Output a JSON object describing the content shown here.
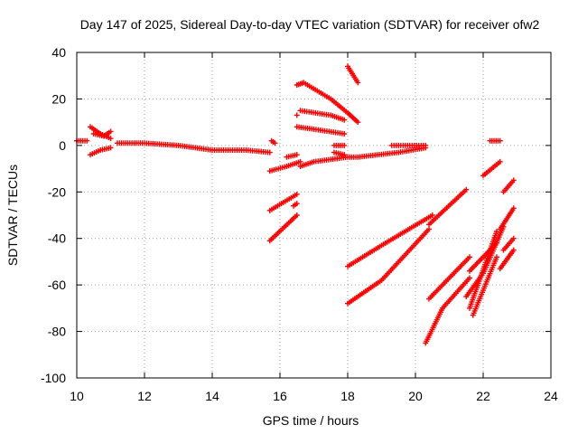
{
  "chart_data": {
    "type": "scatter",
    "title": "Day 147 of 2025, Sidereal Day-to-day VTEC variation (SDTVAR) for receiver ofw2",
    "xlabel": "GPS time / hours",
    "ylabel": "SDTVAR / TECUs",
    "xlim": [
      10,
      24
    ],
    "ylim": [
      -100,
      40
    ],
    "xticks": [
      "10",
      "12",
      "14",
      "16",
      "18",
      "20",
      "22",
      "24"
    ],
    "yticks": [
      "-100",
      "-80",
      "-60",
      "-40",
      "-20",
      "0",
      "20",
      "40"
    ],
    "grid": true,
    "legend": "none",
    "marker": "plus",
    "color": "#ff0000",
    "series": [
      {
        "x": [
          10.0,
          10.3
        ],
        "y": [
          2,
          2
        ]
      },
      {
        "x": [
          10.4,
          10.7,
          11.0
        ],
        "y": [
          8,
          5,
          3
        ]
      },
      {
        "x": [
          10.5,
          10.8,
          11.0
        ],
        "y": [
          5,
          4,
          6
        ]
      },
      {
        "x": [
          10.4,
          10.7,
          11.0
        ],
        "y": [
          -4,
          -2,
          -1
        ]
      },
      {
        "x": [
          11.2,
          12.0,
          13.0,
          14.0,
          15.0,
          15.7
        ],
        "y": [
          1,
          1,
          0,
          -2,
          -2,
          -3
        ]
      },
      {
        "x": [
          15.75,
          15.85
        ],
        "y": [
          2,
          1
        ]
      },
      {
        "x": [
          15.7,
          16.2,
          16.6
        ],
        "y": [
          -11,
          -9,
          -7
        ]
      },
      {
        "x": [
          16.2,
          16.5
        ],
        "y": [
          -5,
          -4
        ]
      },
      {
        "x": [
          15.7,
          16.5
        ],
        "y": [
          -28,
          -21
        ]
      },
      {
        "x": [
          16.4,
          16.5
        ],
        "y": [
          -26,
          -25
        ]
      },
      {
        "x": [
          15.7,
          16.5
        ],
        "y": [
          -41,
          -30
        ]
      },
      {
        "x": [
          16.6,
          17.0,
          18.0,
          18.3,
          19.5,
          20.3
        ],
        "y": [
          -9,
          -7,
          -5,
          -5,
          -3,
          -1
        ]
      },
      {
        "x": [
          16.5,
          16.7,
          17.5,
          18.0,
          18.3
        ],
        "y": [
          26,
          27,
          20,
          14,
          10
        ]
      },
      {
        "x": [
          16.5
        ],
        "y": [
          13
        ]
      },
      {
        "x": [
          16.6,
          17.5,
          17.9
        ],
        "y": [
          15,
          13,
          11
        ]
      },
      {
        "x": [
          16.5,
          17.0,
          17.9
        ],
        "y": [
          8,
          7,
          5
        ]
      },
      {
        "x": [
          17.6,
          17.9
        ],
        "y": [
          0,
          0
        ]
      },
      {
        "x": [
          17.6,
          17.9
        ],
        "y": [
          -3,
          -4
        ]
      },
      {
        "x": [
          18.0,
          18.3
        ],
        "y": [
          34,
          27
        ]
      },
      {
        "x": [
          19.3,
          20.3
        ],
        "y": [
          0,
          0
        ]
      },
      {
        "x": [
          18.0,
          19.0,
          20.5
        ],
        "y": [
          -52,
          -43,
          -30
        ]
      },
      {
        "x": [
          18.0,
          19.0,
          20.4
        ],
        "y": [
          -68,
          -58,
          -36
        ]
      },
      {
        "x": [
          20.4,
          21.5
        ],
        "y": [
          -34,
          -19
        ]
      },
      {
        "x": [
          20.3,
          20.8,
          21.6
        ],
        "y": [
          -85,
          -70,
          -57
        ]
      },
      {
        "x": [
          20.4,
          21.6
        ],
        "y": [
          -66,
          -48
        ]
      },
      {
        "x": [
          21.6,
          22.4
        ],
        "y": [
          -70,
          -37
        ]
      },
      {
        "x": [
          21.5,
          22.0,
          22.6
        ],
        "y": [
          -65,
          -55,
          -35
        ]
      },
      {
        "x": [
          21.7,
          22.4
        ],
        "y": [
          -73,
          -48
        ]
      },
      {
        "x": [
          21.6,
          22.4
        ],
        "y": [
          -54,
          -42
        ]
      },
      {
        "x": [
          22.5,
          22.9
        ],
        "y": [
          -53,
          -45
        ]
      },
      {
        "x": [
          22.6,
          22.9
        ],
        "y": [
          -45,
          -40
        ]
      },
      {
        "x": [
          22.5,
          22.9
        ],
        "y": [
          -36,
          -27
        ]
      },
      {
        "x": [
          22.6,
          22.9
        ],
        "y": [
          -20,
          -15
        ]
      },
      {
        "x": [
          22.0,
          22.5
        ],
        "y": [
          -13,
          -7
        ]
      },
      {
        "x": [
          22.2,
          22.5
        ],
        "y": [
          2,
          2
        ]
      }
    ]
  }
}
